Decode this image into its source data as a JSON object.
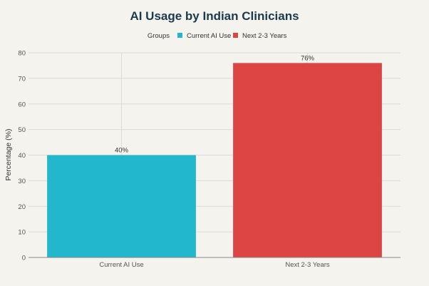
{
  "chart_data": {
    "type": "bar",
    "title": "AI Usage by Indian Clinicians",
    "legend_title": "Groups",
    "legend_position": "top-center",
    "ylabel": "Percentage (%)",
    "xlabel": "",
    "ylim": [
      0,
      80
    ],
    "yticks": [
      0,
      10,
      20,
      30,
      40,
      50,
      60,
      70,
      80
    ],
    "grid": true,
    "categories": [
      "Current AI Use",
      "Next 2-3 Years"
    ],
    "values": [
      40,
      76
    ],
    "data_labels": [
      "40%",
      "76%"
    ],
    "colors": [
      "#22b7cc",
      "#dd4545"
    ]
  }
}
